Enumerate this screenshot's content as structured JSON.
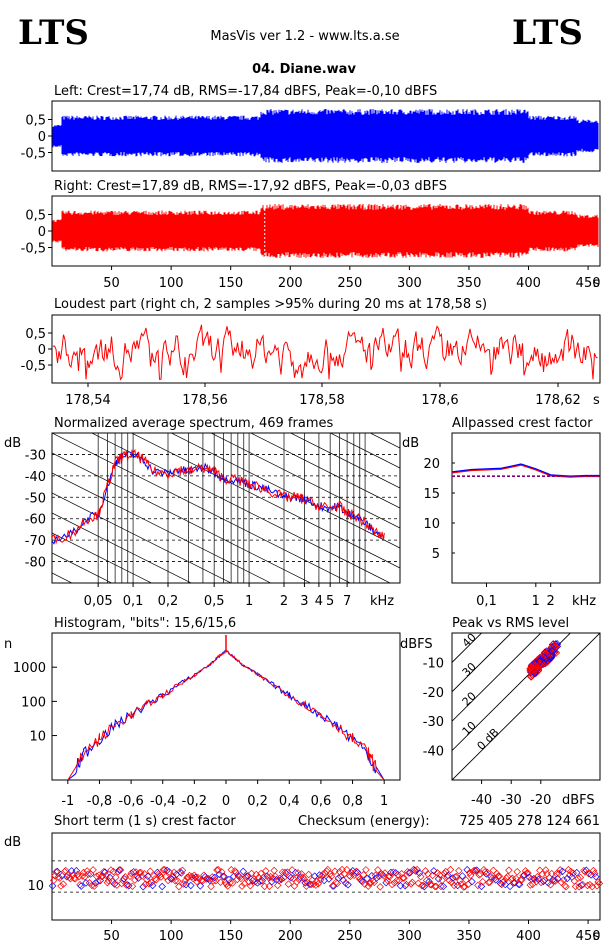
{
  "header": {
    "logo_left": "LTS",
    "logo_right": "LTS",
    "app_title": "MasVis ver 1.2 - www.lts.a.se",
    "file_name": "04. Diane.wav"
  },
  "colors": {
    "left": "#0000ff",
    "right": "#ff0000",
    "purple": "#800080"
  },
  "chart_data": [
    {
      "type": "line",
      "name": "left-waveform",
      "title": "Left: Crest=17,74 dB, RMS=-17,84 dBFS, Peak=-0,10 dBFS",
      "yticks": [
        "0,5",
        "0",
        "-0,5"
      ],
      "ylim": [
        -1,
        1
      ],
      "xlim": [
        0,
        460
      ]
    },
    {
      "type": "line",
      "name": "right-waveform",
      "title": "Right: Crest=17,89 dB, RMS=-17,92 dBFS, Peak=-0,03 dBFS",
      "yticks": [
        "0,5",
        "0",
        "-0,5"
      ],
      "xticks": [
        "50",
        "100",
        "150",
        "200",
        "250",
        "300",
        "350",
        "400",
        "450"
      ],
      "xunit": "s",
      "marker_x": 178.58
    },
    {
      "type": "line",
      "name": "loudest-part",
      "title": "Loudest part (right ch, 2 samples >95% during 20 ms at 178,58 s)",
      "yticks": [
        "0,5",
        "0",
        "-0,5"
      ],
      "xticks": [
        "178,54",
        "178,56",
        "178,58",
        "178,6",
        "178,62"
      ],
      "xunit": "s"
    },
    {
      "type": "line",
      "name": "average-spectrum",
      "title": "Normalized average spectrum, 469 frames",
      "ylabel": "dB",
      "yticks": [
        "-30",
        "-40",
        "-50",
        "-60",
        "-70",
        "-80"
      ],
      "ylim": [
        -90,
        -20
      ],
      "xticks": [
        "0,05",
        "0,1",
        "0,2",
        "0,5",
        "1",
        "2",
        "3",
        "4",
        "5",
        "7"
      ],
      "xunit": "kHz",
      "x_khz": [
        0.02,
        0.03,
        0.04,
        0.05,
        0.06,
        0.07,
        0.08,
        0.1,
        0.12,
        0.15,
        0.2,
        0.25,
        0.3,
        0.4,
        0.5,
        0.6,
        0.8,
        1,
        1.2,
        1.5,
        2,
        2.5,
        3,
        4,
        5,
        6,
        7,
        8,
        10,
        12,
        15
      ],
      "y_db": [
        -70,
        -67,
        -60,
        -58,
        -45,
        -34,
        -31,
        -30,
        -32,
        -38,
        -39,
        -37,
        -38,
        -36,
        -38,
        -41,
        -42,
        -44,
        -45,
        -47,
        -50,
        -50,
        -51,
        -54,
        -55,
        -54,
        -58,
        -58,
        -62,
        -66,
        -69
      ]
    },
    {
      "type": "line",
      "name": "allpassed-crest-factor",
      "title": "Allpassed crest factor",
      "ylabel": "dB",
      "yticks": [
        "20",
        "15",
        "10",
        "5"
      ],
      "ylim": [
        0,
        25
      ],
      "xticks": [
        "0,1",
        "1",
        "2"
      ],
      "xunit": "kHz",
      "x_khz": [
        0.02,
        0.05,
        0.1,
        0.2,
        0.5,
        1,
        2,
        5,
        10,
        20
      ],
      "y_db": [
        18.5,
        18.9,
        19.0,
        19.1,
        19.8,
        19.0,
        18.0,
        17.8,
        17.9,
        17.9
      ],
      "reference_db": 17.8
    },
    {
      "type": "line",
      "name": "histogram",
      "title": "Histogram, \"bits\": 15,6/15,6",
      "ylabel": "n",
      "yticks": [
        "1000",
        "100",
        "10"
      ],
      "xticks": [
        "-1",
        "-0,8",
        "-0,6",
        "-0,4",
        "-0,2",
        "0",
        "0,2",
        "0,4",
        "0,6",
        "0,8",
        "1"
      ],
      "xlim": [
        -1.1,
        1.1
      ],
      "x_amp": [
        -0.95,
        -0.9,
        -0.8,
        -0.7,
        -0.6,
        -0.5,
        -0.4,
        -0.3,
        -0.2,
        -0.1,
        -0.05,
        0,
        0.05,
        0.1,
        0.2,
        0.3,
        0.4,
        0.5,
        0.6,
        0.7,
        0.8,
        0.9,
        0.95
      ],
      "y_count": [
        1,
        3,
        8,
        20,
        40,
        80,
        150,
        300,
        600,
        1200,
        2000,
        3000,
        2000,
        1200,
        600,
        300,
        150,
        80,
        40,
        20,
        8,
        3,
        1
      ]
    },
    {
      "type": "scatter",
      "name": "peak-vs-rms",
      "title": "Peak vs RMS level",
      "ylabel": "dBFS",
      "xlabel": "dBFS",
      "yticks": [
        "-10",
        "-20",
        "-30",
        "-40"
      ],
      "xticks": [
        "-40",
        "-30",
        "-20"
      ],
      "diag_labels": [
        "40",
        "30",
        "20",
        "10",
        "0 dB"
      ]
    },
    {
      "type": "scatter",
      "name": "short-term-crest",
      "title": "Short term (1 s) crest factor",
      "ylabel": "dB",
      "yticks": [
        "10"
      ],
      "xticks": [
        "50",
        "100",
        "150",
        "200",
        "250",
        "300",
        "350",
        "400",
        "450"
      ],
      "xunit": "s",
      "checksum_label": "Checksum (energy):",
      "checksum_value": "725 405 278 124 661"
    }
  ]
}
